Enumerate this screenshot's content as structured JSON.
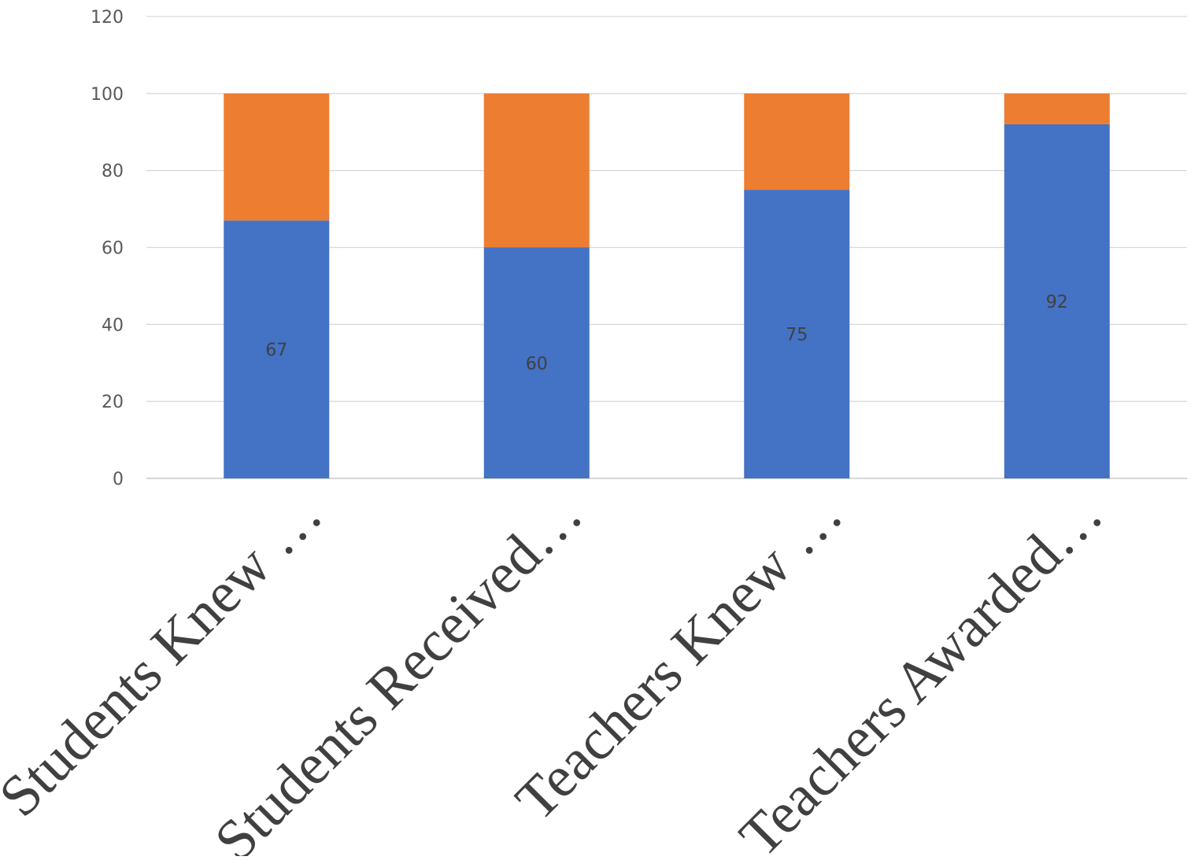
{
  "chart_data": {
    "type": "bar",
    "stacked": true,
    "title": "",
    "xlabel": "",
    "ylabel": "",
    "ylim": [
      0,
      120
    ],
    "yticks": [
      0,
      20,
      40,
      60,
      80,
      100,
      120
    ],
    "grid": true,
    "legend": "none",
    "categories": [
      "Students Knew …",
      "Students Received…",
      "Teachers Knew …",
      "Teachers Awarded…"
    ],
    "series": [
      {
        "values": [
          67,
          60,
          75,
          92
        ],
        "color": "#4472C4",
        "data_labels": true
      },
      {
        "values": [
          33,
          40,
          25,
          8
        ],
        "color": "#ED7D31",
        "data_labels": false
      }
    ]
  }
}
